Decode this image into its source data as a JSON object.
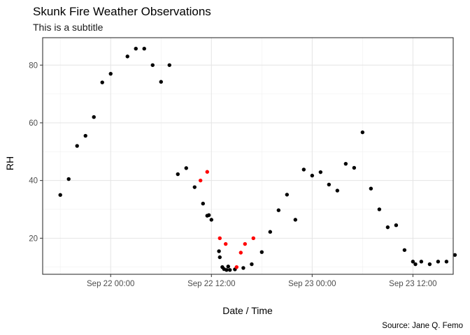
{
  "chart_data": {
    "type": "scatter",
    "title": "Skunk Fire Weather Observations",
    "subtitle": "This is a subtitle",
    "caption": "Source: Jane Q. Femo",
    "xlabel": "Date / Time",
    "ylabel": "RH",
    "x_ticks": [
      "Sep 22 00:00",
      "Sep 22 12:00",
      "Sep 23 00:00",
      "Sep 23 12:00"
    ],
    "x_tick_hours": [
      0,
      12,
      24,
      36
    ],
    "xlim_hours": [
      -8.1,
      40.8
    ],
    "y_ticks": [
      20,
      40,
      60,
      80
    ],
    "ylim": [
      7.5,
      89.5
    ],
    "x_unit": "hours from Sep 22 00:00",
    "grid": true,
    "point_colors": {
      "normal": "#000000",
      "flagged": "#ff0000"
    },
    "series": [
      {
        "points": [
          {
            "x": -6.0,
            "y": 35
          },
          {
            "x": -5.0,
            "y": 40.5
          },
          {
            "x": -4.0,
            "y": 52
          },
          {
            "x": -3.0,
            "y": 55.5
          },
          {
            "x": -2.0,
            "y": 62
          },
          {
            "x": -1.0,
            "y": 74
          },
          {
            "x": 0.0,
            "y": 77
          },
          {
            "x": 2.0,
            "y": 83
          },
          {
            "x": 3.0,
            "y": 85.7
          },
          {
            "x": 4.0,
            "y": 85.7
          },
          {
            "x": 5.0,
            "y": 80
          },
          {
            "x": 6.0,
            "y": 74.2
          },
          {
            "x": 7.0,
            "y": 80
          },
          {
            "x": 8.0,
            "y": 42.2
          },
          {
            "x": 9.0,
            "y": 44.3
          },
          {
            "x": 10.0,
            "y": 37.7
          },
          {
            "x": 10.7,
            "y": 40.0,
            "flag": true
          },
          {
            "x": 11.0,
            "y": 32
          },
          {
            "x": 11.5,
            "y": 43.0,
            "flag": true
          },
          {
            "x": 11.5,
            "y": 27.8
          },
          {
            "x": 11.7,
            "y": 28
          },
          {
            "x": 12.0,
            "y": 26.4
          },
          {
            "x": 13.0,
            "y": 20.0,
            "flag": true
          },
          {
            "x": 12.9,
            "y": 15.5
          },
          {
            "x": 13.0,
            "y": 13.4
          },
          {
            "x": 13.3,
            "y": 10.0
          },
          {
            "x": 13.5,
            "y": 9.3
          },
          {
            "x": 13.7,
            "y": 18.0,
            "flag": true
          },
          {
            "x": 13.8,
            "y": 9.0
          },
          {
            "x": 14.0,
            "y": 10.2
          },
          {
            "x": 14.2,
            "y": 9.0
          },
          {
            "x": 14.8,
            "y": 9.2
          },
          {
            "x": 15.0,
            "y": 10.0,
            "flag": true
          },
          {
            "x": 15.5,
            "y": 15.0,
            "flag": true
          },
          {
            "x": 15.8,
            "y": 9.7
          },
          {
            "x": 16.0,
            "y": 18.0,
            "flag": true
          },
          {
            "x": 16.8,
            "y": 11.0
          },
          {
            "x": 17.0,
            "y": 20.0,
            "flag": true
          },
          {
            "x": 18.0,
            "y": 15.2
          },
          {
            "x": 19.0,
            "y": 22.2
          },
          {
            "x": 20.0,
            "y": 29.7
          },
          {
            "x": 21.0,
            "y": 35.1
          },
          {
            "x": 22.0,
            "y": 26.4
          },
          {
            "x": 23.0,
            "y": 43.8
          },
          {
            "x": 24.0,
            "y": 41.7
          },
          {
            "x": 25.0,
            "y": 42.9
          },
          {
            "x": 26.0,
            "y": 38.6
          },
          {
            "x": 27.0,
            "y": 36.5
          },
          {
            "x": 28.0,
            "y": 45.8
          },
          {
            "x": 29.0,
            "y": 44.4
          },
          {
            "x": 30.0,
            "y": 56.7
          },
          {
            "x": 31.0,
            "y": 37.2
          },
          {
            "x": 32.0,
            "y": 30.0
          },
          {
            "x": 33.0,
            "y": 23.8
          },
          {
            "x": 34.0,
            "y": 24.5
          },
          {
            "x": 35.0,
            "y": 15.9
          },
          {
            "x": 36.0,
            "y": 11.9
          },
          {
            "x": 36.3,
            "y": 11.0
          },
          {
            "x": 37.0,
            "y": 11.9
          },
          {
            "x": 38.0,
            "y": 11.0
          },
          {
            "x": 39.0,
            "y": 11.9
          },
          {
            "x": 40.0,
            "y": 11.9
          },
          {
            "x": 41.0,
            "y": 14.2
          }
        ]
      }
    ]
  }
}
